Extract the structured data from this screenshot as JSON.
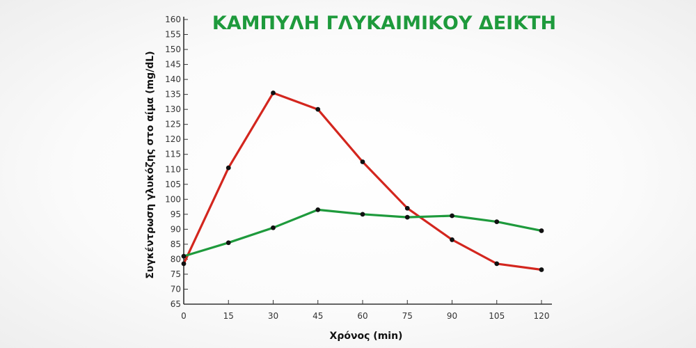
{
  "chart_data": {
    "type": "line",
    "title": "ΚΑΜΠΥΛΗ ΓΛΥΚΑΙΜΙΚΟΥ ΔΕΙΚΤΗ",
    "xlabel": "Χρόνος (min)",
    "ylabel": "Συγκέντρωση γλυκόζης στο αίμα (mg/dL)",
    "x": [
      0,
      15,
      30,
      45,
      60,
      75,
      90,
      105,
      120
    ],
    "xticks": [
      "0",
      "15",
      "30",
      "45",
      "60",
      "75",
      "90",
      "105",
      "120"
    ],
    "yticks": [
      "65",
      "70",
      "75",
      "80",
      "85",
      "90",
      "95",
      "100",
      "105",
      "110",
      "115",
      "120",
      "125",
      "130",
      "135",
      "140",
      "145",
      "150",
      "155",
      "160"
    ],
    "xlim": [
      0,
      120
    ],
    "ylim": [
      65,
      160
    ],
    "grid": false,
    "legend": "none",
    "series": [
      {
        "color": "#d3261e",
        "values": [
          78.5,
          110.5,
          135.5,
          130,
          112.5,
          97,
          86.5,
          78.5,
          76.5
        ]
      },
      {
        "color": "#1e9a3c",
        "values": [
          81,
          85.5,
          90.5,
          96.5,
          95,
          94,
          94.5,
          92.5,
          89.5
        ]
      }
    ]
  },
  "colors": {
    "title": "#1e9a3c",
    "axis": "#333333",
    "marker": "#111111"
  }
}
